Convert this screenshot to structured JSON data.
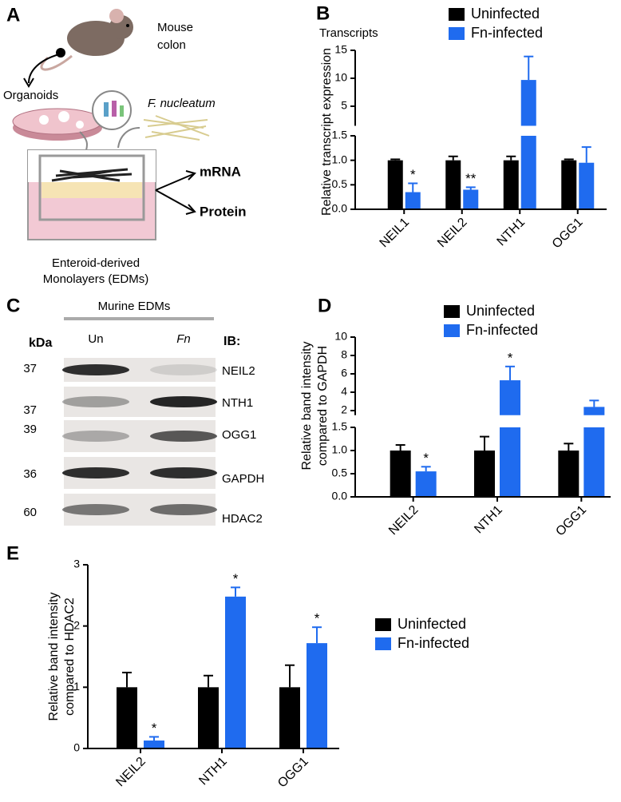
{
  "panel_labels": [
    "A",
    "B",
    "C",
    "D",
    "E"
  ],
  "panel_a": {
    "source": [
      "Mouse",
      "colon"
    ],
    "intermediate": "Organoids",
    "bacterium": "F. nucleatum",
    "readouts": [
      "mRNA",
      "Protein"
    ],
    "caption": [
      "Enteroid-derived",
      "Monolayers (EDMs)"
    ]
  },
  "panel_c": {
    "title": "Murine EDMs",
    "kda_header": "kDa",
    "lanes": [
      "Un",
      "Fn"
    ],
    "ib_header": "IB:",
    "bands": [
      {
        "kda": 37,
        "protein": "NEIL2"
      },
      {
        "kda": 37,
        "protein": "NTH1"
      },
      {
        "kda": 39,
        "protein": "OGG1"
      },
      {
        "kda": 36,
        "protein": "GAPDH"
      },
      {
        "kda": 60,
        "protein": "HDAC2"
      }
    ]
  },
  "chart_data": [
    {
      "type": "bar",
      "annotation": "Transcripts",
      "ylabel": [
        "Relative transcript expression"
      ],
      "categories": [
        "NEIL1",
        "NEIL2",
        "NTH1",
        "OGG1"
      ],
      "series": [
        {
          "name": "Uninfected",
          "color": "#000000",
          "values": [
            1,
            1,
            1,
            1
          ],
          "errors": [
            0.02,
            0.08,
            0.08,
            0.02
          ]
        },
        {
          "name": "Fn-infected",
          "color": "#1f6bef",
          "values": [
            0.35,
            0.4,
            9.7,
            0.95
          ],
          "errors": [
            0.18,
            0.05,
            4.2,
            0.32
          ],
          "significance": [
            "*",
            "**",
            null,
            null
          ]
        }
      ],
      "y_segments": [
        {
          "ylim": [
            0,
            1.5
          ],
          "yticks": [
            {
              "value": 0,
              "label": "0.0"
            },
            0.5,
            {
              "value": 1,
              "label": "1.0"
            },
            1.5
          ]
        },
        {
          "ylim": [
            1.5,
            15
          ],
          "yticks": [
            5,
            10,
            15
          ]
        }
      ]
    },
    {
      "type": "bar",
      "ylabel": [
        "Relative band intensity",
        "compared to GAPDH"
      ],
      "categories": [
        "NEIL2",
        "NTH1",
        "OGG1"
      ],
      "series": [
        {
          "name": "Uninfected",
          "color": "#000000",
          "values": [
            1,
            1,
            1
          ],
          "errors": [
            0.12,
            0.3,
            0.15
          ]
        },
        {
          "name": "Fn-infected",
          "color": "#1f6bef",
          "values": [
            0.55,
            5.3,
            2.4
          ],
          "errors": [
            0.1,
            1.5,
            0.7
          ],
          "significance": [
            "*",
            "*",
            null
          ]
        }
      ],
      "y_segments": [
        {
          "ylim": [
            0,
            1.5
          ],
          "yticks": [
            {
              "value": 0,
              "label": "0.0"
            },
            0.5,
            {
              "value": 1,
              "label": "1.0"
            },
            1.5
          ]
        },
        {
          "ylim": [
            1.5,
            10
          ],
          "yticks": [
            2,
            4,
            6,
            8,
            10
          ]
        }
      ]
    },
    {
      "type": "bar",
      "ylabel": [
        "Relative band intensity",
        "compared to HDAC2"
      ],
      "categories": [
        "NEIL2",
        "NTH1",
        "OGG1"
      ],
      "series": [
        {
          "name": "Uninfected",
          "color": "#000000",
          "values": [
            1,
            1,
            1
          ],
          "errors": [
            0.24,
            0.19,
            0.36
          ]
        },
        {
          "name": "Fn-infected",
          "color": "#1f6bef",
          "values": [
            0.13,
            2.48,
            1.72
          ],
          "errors": [
            0.06,
            0.15,
            0.26
          ],
          "significance": [
            "*",
            "*",
            "*"
          ]
        }
      ],
      "ylim": [
        0,
        3
      ],
      "yticks": [
        0,
        1,
        2,
        3
      ]
    }
  ]
}
